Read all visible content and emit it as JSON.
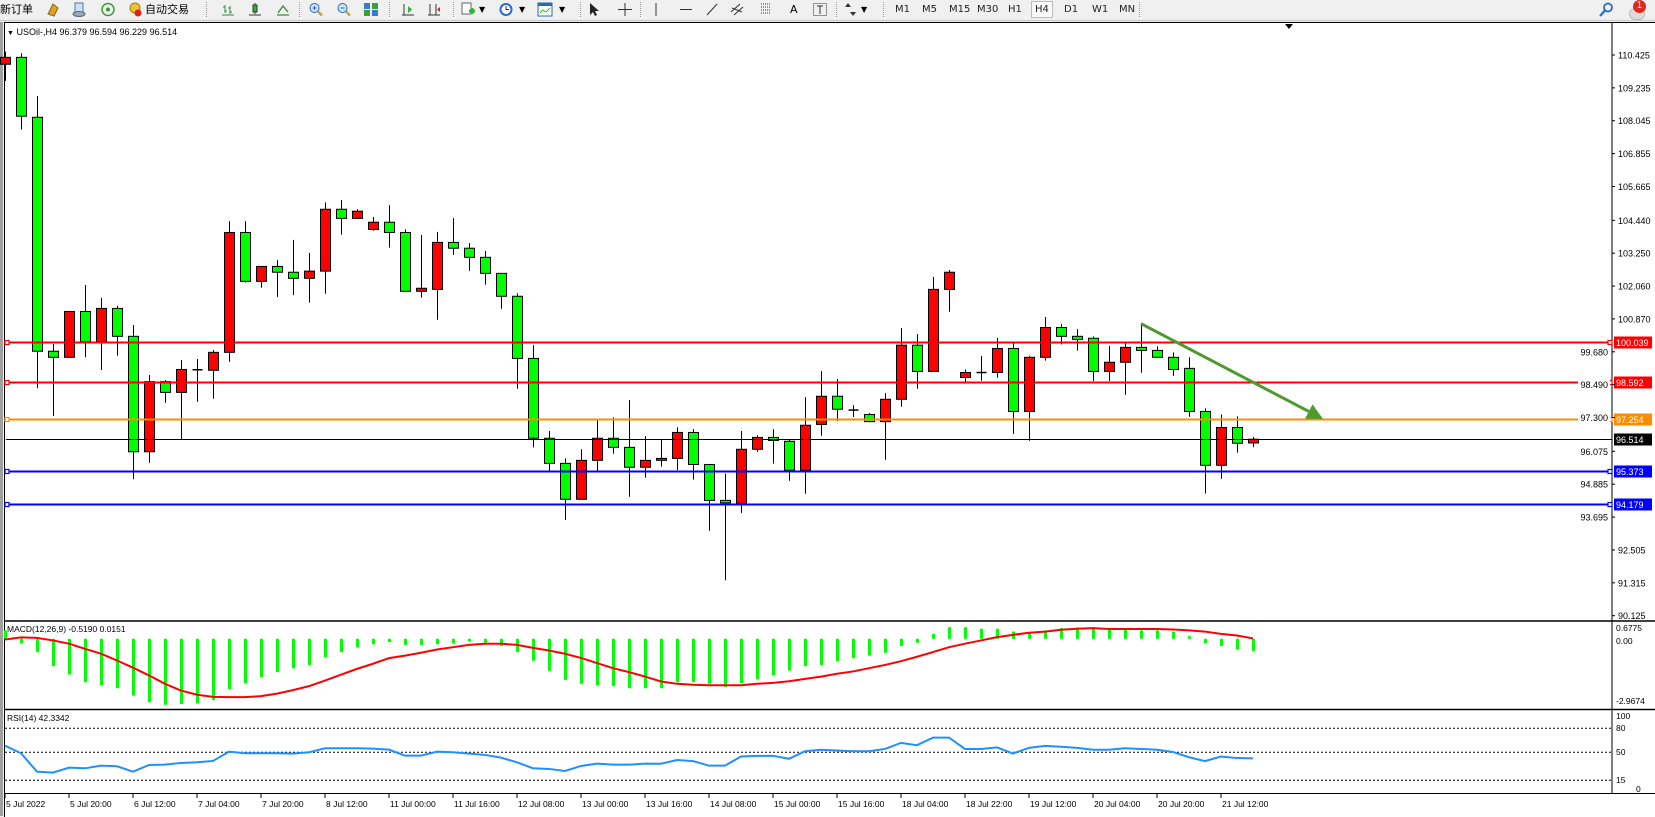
{
  "toolbar": {
    "new_order_label": "新订单",
    "auto_trading_label": "自动交易",
    "timeframes": [
      "M1",
      "M5",
      "M15",
      "M30",
      "H1",
      "H4",
      "D1",
      "W1",
      "MN"
    ],
    "active_timeframe": "H4",
    "notification_count": "1",
    "icons": [
      "gold-icon",
      "history-icon",
      "signal-icon",
      "auto-trading-icon",
      "bar-chart-icon",
      "candlestick-icon",
      "line-chart-icon",
      "zoom-in-icon",
      "zoom-out-icon",
      "tile-windows-icon",
      "chart-shift-icon",
      "autoscroll-icon",
      "indicators-icon",
      "periods-icon",
      "templates-icon",
      "cursor-icon",
      "crosshair-icon",
      "vertical-line-icon",
      "horizontal-line-icon",
      "trend-line-icon",
      "equidistant-channel-icon",
      "fibonacci-icon",
      "text-icon",
      "text-label-icon",
      "arrows-icon",
      "search-icon",
      "notification-icon"
    ]
  },
  "chart": {
    "symbol_header": "USOil-,H4",
    "ohlc_header": "96.379 96.594 96.229 96.514",
    "macd_header": "MACD(12,26,9) -0.5190 0.0151",
    "rsi_header": "RSI(14) 42.3342"
  },
  "chart_data": [
    {
      "type": "candlestick",
      "symbol": "USOil-",
      "timeframe": "H4",
      "ylim": [
        90.125,
        110.425
      ],
      "y_ticks": [
        "110.425",
        "109.235",
        "108.045",
        "106.855",
        "105.665",
        "104.440",
        "103.250",
        "102.060",
        "100.870",
        "99.680",
        "98.490",
        "97.300",
        "96.075",
        "94.885",
        "93.695",
        "92.505",
        "91.315",
        "90.125"
      ],
      "x_ticks": [
        "5 Jul 2022",
        "5 Jul 20:00",
        "6 Jul 12:00",
        "7 Jul 04:00",
        "7 Jul 20:00",
        "8 Jul 12:00",
        "11 Jul 00:00",
        "11 Jul 16:00",
        "12 Jul 08:00",
        "13 Jul 00:00",
        "13 Jul 16:00",
        "14 Jul 08:00",
        "15 Jul 00:00",
        "15 Jul 16:00",
        "18 Jul 04:00",
        "18 Jul 22:00",
        "19 Jul 12:00",
        "20 Jul 04:00",
        "20 Jul 20:00",
        "21 Jul 12:00"
      ],
      "colors": {
        "up": "#ff0000",
        "down": "#00ff00",
        "outline": "#000000"
      },
      "candles_ohlc": [
        [
          110.09,
          110.55,
          109.49,
          110.34
        ],
        [
          110.34,
          110.49,
          107.73,
          108.21
        ],
        [
          108.17,
          108.94,
          98.36,
          99.7
        ],
        [
          99.7,
          99.96,
          97.36,
          99.48
        ],
        [
          99.48,
          101.14,
          99.48,
          101.14
        ],
        [
          101.14,
          102.1,
          99.48,
          100.04
        ],
        [
          100.04,
          101.63,
          99.02,
          101.25
        ],
        [
          101.25,
          101.34,
          99.54,
          100.24
        ],
        [
          100.24,
          100.65,
          95.07,
          96.06
        ],
        [
          96.06,
          98.84,
          95.66,
          98.6
        ],
        [
          98.6,
          98.66,
          97.83,
          98.21
        ],
        [
          98.21,
          99.38,
          96.52,
          99.04
        ],
        [
          99.03,
          99.42,
          97.87,
          99.03
        ],
        [
          99.01,
          99.74,
          97.98,
          99.66
        ],
        [
          99.66,
          104.41,
          99.32,
          104.0
        ],
        [
          104.0,
          104.41,
          102.19,
          102.23
        ],
        [
          102.23,
          102.78,
          102.0,
          102.77
        ],
        [
          102.77,
          103.0,
          101.67,
          102.56
        ],
        [
          102.56,
          103.73,
          101.73,
          102.34
        ],
        [
          102.34,
          103.26,
          101.46,
          102.6
        ],
        [
          102.6,
          105.09,
          101.78,
          104.84
        ],
        [
          104.84,
          105.17,
          103.92,
          104.51
        ],
        [
          104.51,
          104.84,
          104.51,
          104.77
        ],
        [
          104.11,
          104.56,
          104.06,
          104.37
        ],
        [
          104.37,
          104.99,
          103.45,
          104.0
        ],
        [
          104.0,
          104.11,
          101.87,
          101.87
        ],
        [
          101.87,
          103.91,
          101.64,
          101.98
        ],
        [
          101.94,
          104.02,
          100.84,
          103.64
        ],
        [
          103.64,
          104.52,
          103.19,
          103.43
        ],
        [
          103.43,
          103.62,
          102.61,
          103.1
        ],
        [
          103.1,
          103.33,
          102.11,
          102.52
        ],
        [
          102.52,
          102.52,
          101.24,
          101.69
        ],
        [
          101.69,
          101.8,
          98.34,
          99.44
        ],
        [
          99.44,
          99.92,
          96.22,
          96.55
        ],
        [
          96.55,
          96.81,
          95.31,
          95.64
        ],
        [
          95.64,
          95.82,
          93.59,
          94.34
        ],
        [
          94.34,
          96.15,
          94.34,
          95.75
        ],
        [
          95.75,
          97.21,
          95.31,
          96.55
        ],
        [
          96.55,
          97.3,
          95.99,
          96.22
        ],
        [
          96.22,
          97.93,
          94.43,
          95.5
        ],
        [
          95.5,
          96.63,
          95.12,
          95.75
        ],
        [
          95.75,
          96.49,
          95.52,
          95.82
        ],
        [
          95.82,
          96.95,
          95.4,
          96.76
        ],
        [
          96.76,
          96.88,
          95.05,
          95.6
        ],
        [
          95.6,
          95.6,
          93.2,
          94.3
        ],
        [
          94.3,
          95.27,
          91.41,
          94.21
        ],
        [
          94.19,
          96.81,
          93.85,
          96.15
        ],
        [
          96.15,
          96.66,
          96.06,
          96.58
        ],
        [
          96.58,
          96.88,
          95.63,
          96.47
        ],
        [
          96.44,
          96.49,
          95.01,
          95.39
        ],
        [
          95.39,
          98.04,
          94.54,
          97.02
        ],
        [
          97.05,
          98.98,
          96.64,
          98.07
        ],
        [
          98.07,
          98.69,
          97.17,
          97.6
        ],
        [
          97.57,
          97.75,
          97.32,
          97.57
        ],
        [
          97.41,
          97.46,
          97.15,
          97.15
        ],
        [
          97.15,
          98.19,
          95.77,
          97.96
        ],
        [
          97.96,
          100.54,
          97.69,
          99.92
        ],
        [
          99.92,
          100.32,
          98.34,
          98.97
        ],
        [
          98.97,
          102.39,
          98.97,
          101.94
        ],
        [
          101.94,
          102.64,
          101.13,
          102.56
        ],
        [
          98.75,
          99.04,
          98.54,
          98.93
        ],
        [
          98.93,
          99.53,
          98.63,
          98.93
        ],
        [
          98.93,
          100.18,
          98.74,
          99.8
        ],
        [
          99.8,
          100.02,
          96.71,
          97.52
        ],
        [
          97.52,
          99.53,
          96.46,
          99.48
        ],
        [
          99.48,
          100.94,
          99.36,
          100.56
        ],
        [
          100.56,
          100.69,
          99.95,
          100.24
        ],
        [
          100.24,
          100.5,
          99.72,
          100.13
        ],
        [
          100.17,
          100.24,
          98.62,
          98.97
        ],
        [
          98.97,
          99.89,
          98.62,
          99.3
        ],
        [
          99.3,
          100.02,
          98.12,
          99.84
        ],
        [
          99.84,
          100.71,
          98.92,
          99.73
        ],
        [
          99.73,
          99.88,
          99.48,
          99.48
        ],
        [
          99.48,
          99.66,
          98.81,
          99.04
        ],
        [
          99.08,
          99.48,
          97.33,
          97.52
        ],
        [
          97.52,
          97.63,
          94.55,
          95.57
        ],
        [
          95.57,
          97.41,
          95.08,
          96.94
        ],
        [
          96.94,
          97.34,
          96.03,
          96.37
        ],
        [
          96.379,
          96.594,
          96.229,
          96.514
        ]
      ],
      "horizontal_lines": [
        {
          "price": "100.039",
          "color": "#ff0000"
        },
        {
          "price": "98.592",
          "color": "#ff0000"
        },
        {
          "price": "97.254",
          "color": "#ff8c00"
        },
        {
          "price": "96.514",
          "color": "#000000",
          "kind": "bid"
        },
        {
          "price": "95.373",
          "color": "#0000ff"
        },
        {
          "price": "94.179",
          "color": "#0000ff"
        }
      ],
      "arrow": {
        "from_bar": 71,
        "from_price": 100.7,
        "to_bar": 82,
        "to_price": 97.25,
        "color": "#4f9a2e"
      }
    },
    {
      "type": "bar+line",
      "name": "MACD(12,26,9)",
      "ylim": [
        -2.9674,
        0.6775
      ],
      "y_ticks": [
        "0.6775",
        "0.00",
        "-2.9674"
      ],
      "colors": {
        "main": "#00ff00",
        "signal": "#ff0000"
      },
      "main": [
        0.36,
        -0.2,
        -0.57,
        -1.17,
        -1.53,
        -1.86,
        -1.99,
        -2.12,
        -2.43,
        -2.72,
        -2.83,
        -2.8,
        -2.77,
        -2.63,
        -2.15,
        -1.9,
        -1.65,
        -1.43,
        -1.26,
        -1.12,
        -0.79,
        -0.57,
        -0.36,
        -0.23,
        -0.14,
        -0.26,
        -0.26,
        -0.23,
        -0.2,
        -0.11,
        -0.17,
        -0.31,
        -0.57,
        -0.94,
        -1.37,
        -1.76,
        -1.93,
        -2.0,
        -2.03,
        -2.12,
        -2.12,
        -2.12,
        -1.86,
        -1.86,
        -1.93,
        -2.07,
        -1.9,
        -1.72,
        -1.57,
        -1.36,
        -1.17,
        -1.12,
        -0.96,
        -0.83,
        -0.72,
        -0.6,
        -0.31,
        -0.17,
        0.21,
        0.5,
        0.5,
        0.43,
        0.43,
        0.31,
        0.29,
        0.36,
        0.46,
        0.49,
        0.43,
        0.4,
        0.39,
        0.36,
        0.36,
        0.31,
        0.11,
        -0.19,
        -0.31,
        -0.46,
        -0.519
      ],
      "signal": [
        -0.03,
        0.06,
        0.04,
        -0.07,
        -0.21,
        -0.43,
        -0.64,
        -0.93,
        -1.24,
        -1.57,
        -1.93,
        -2.22,
        -2.4,
        -2.49,
        -2.5,
        -2.5,
        -2.46,
        -2.35,
        -2.2,
        -2.03,
        -1.79,
        -1.54,
        -1.29,
        -1.07,
        -0.83,
        -0.72,
        -0.6,
        -0.46,
        -0.36,
        -0.26,
        -0.21,
        -0.21,
        -0.26,
        -0.39,
        -0.5,
        -0.64,
        -0.82,
        -1.04,
        -1.26,
        -1.43,
        -1.62,
        -1.83,
        -1.93,
        -1.97,
        -1.99,
        -1.99,
        -1.99,
        -1.93,
        -1.89,
        -1.82,
        -1.72,
        -1.62,
        -1.5,
        -1.4,
        -1.26,
        -1.12,
        -0.96,
        -0.77,
        -0.57,
        -0.36,
        -0.21,
        -0.07,
        0.07,
        0.17,
        0.26,
        0.31,
        0.39,
        0.43,
        0.46,
        0.42,
        0.42,
        0.42,
        0.42,
        0.4,
        0.36,
        0.31,
        0.21,
        0.14,
        0.0151
      ]
    },
    {
      "type": "line",
      "name": "RSI(14)",
      "ylim": [
        0,
        100
      ],
      "y_ticks": [
        "100",
        "80",
        "50",
        "15",
        "0"
      ],
      "levels": [
        80,
        50,
        15
      ],
      "color": "#1e90ff",
      "values": [
        58.3,
        48.8,
        25.8,
        24.6,
        30.8,
        30,
        33.3,
        32.5,
        25.8,
        34.2,
        34.6,
        36.7,
        37.5,
        39.2,
        50.8,
        48.8,
        48.8,
        48.8,
        48.3,
        50,
        55,
        55,
        55,
        54.6,
        53.3,
        45.8,
        45.8,
        50.8,
        50,
        48.3,
        46.7,
        43.3,
        37.5,
        30,
        29.2,
        26.7,
        32.9,
        35.8,
        34.6,
        34.6,
        35.8,
        35.7,
        40.4,
        39,
        33.3,
        33.3,
        44.7,
        45.6,
        45.6,
        41.9,
        51.3,
        53.2,
        52.3,
        51.3,
        51.3,
        54.2,
        61.8,
        58.9,
        68.4,
        68.4,
        54.2,
        54.2,
        56.1,
        48.5,
        55.6,
        58,
        57,
        55.6,
        53.2,
        53.2,
        55.1,
        54.2,
        53.2,
        50.4,
        43.8,
        39,
        44.7,
        42.8,
        42.33
      ]
    }
  ]
}
